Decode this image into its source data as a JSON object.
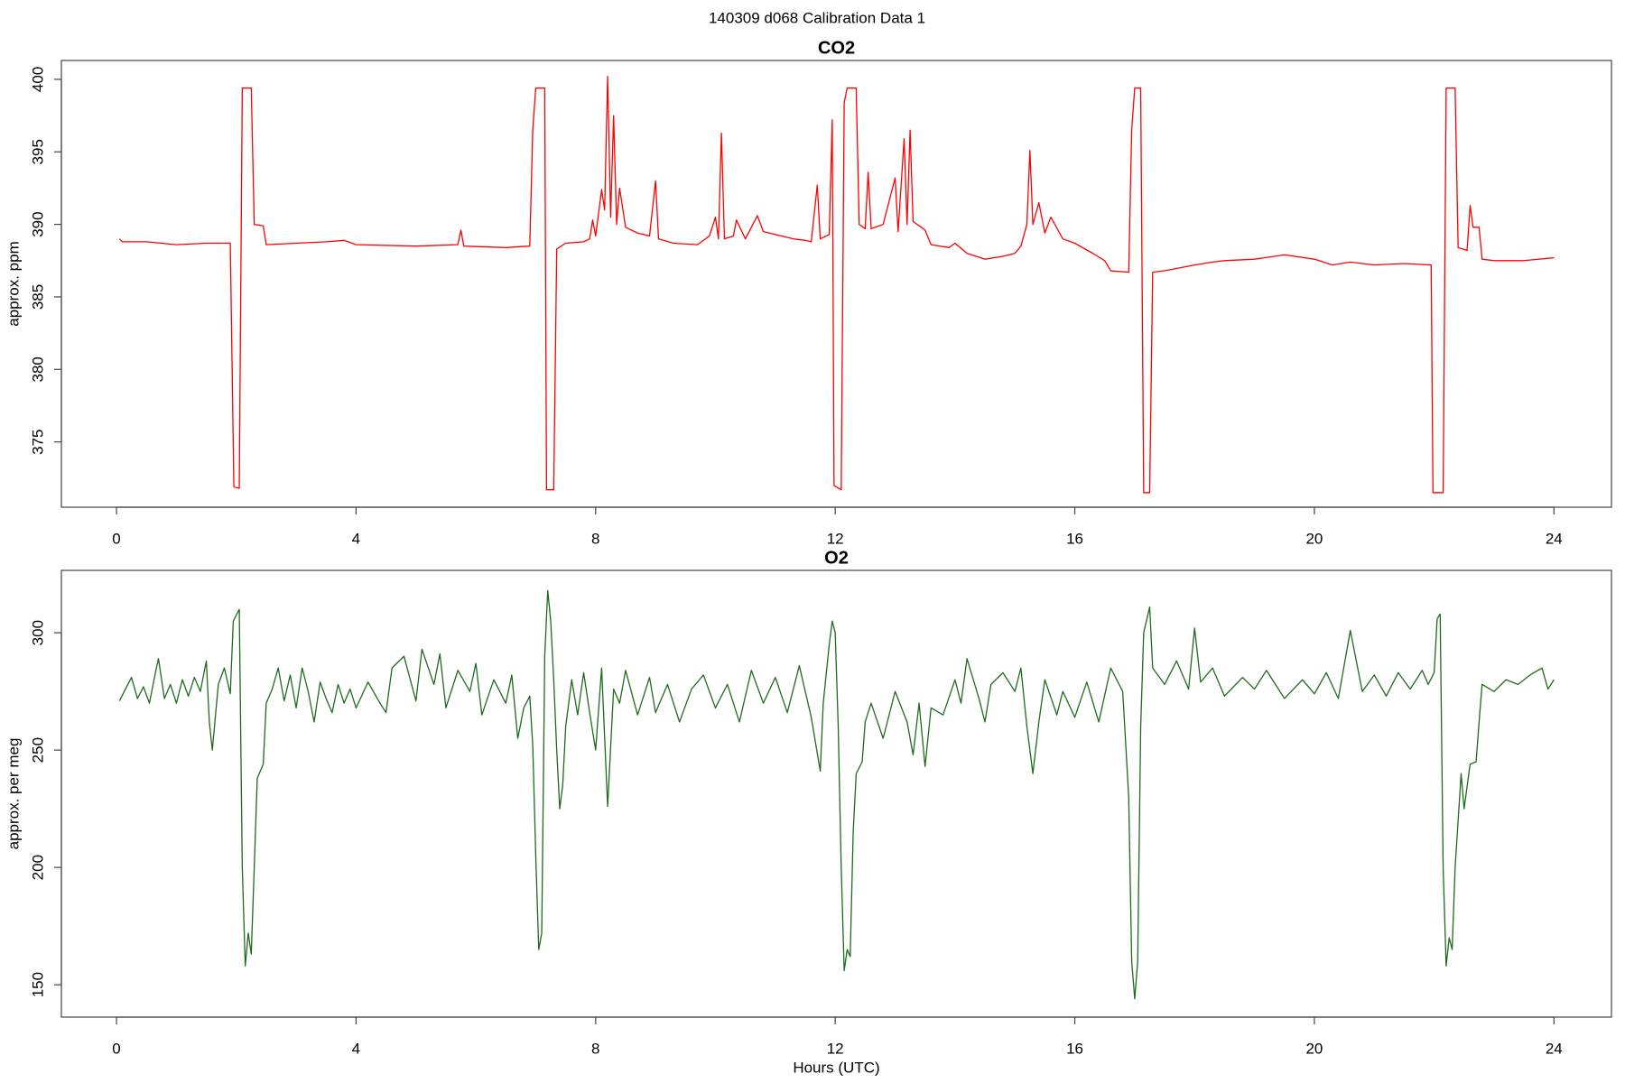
{
  "title": "140309   d068   Calibration Data 1",
  "chart_data": [
    {
      "type": "line",
      "title": "CO2",
      "ylabel": "approx. ppm",
      "color": "#ff0000",
      "grid": false,
      "xlim": [
        -0.92,
        24.96
      ],
      "xticks": [
        0,
        4,
        8,
        12,
        16,
        20,
        24
      ],
      "ylim": [
        370.5,
        401.3
      ],
      "yticks": [
        375,
        380,
        385,
        390,
        395,
        400
      ],
      "x": [
        0.05,
        0.1,
        0.5,
        1.0,
        1.5,
        1.9,
        1.96,
        2.05,
        2.1,
        2.25,
        2.3,
        2.45,
        2.5,
        3.0,
        3.5,
        3.8,
        4.0,
        5.0,
        5.7,
        5.75,
        5.8,
        6.5,
        6.9,
        6.95,
        7.0,
        7.15,
        7.18,
        7.3,
        7.35,
        7.5,
        7.8,
        7.9,
        7.95,
        8.0,
        8.1,
        8.15,
        8.2,
        8.25,
        8.3,
        8.35,
        8.4,
        8.5,
        8.7,
        8.9,
        9.0,
        9.05,
        9.3,
        9.7,
        9.9,
        10.0,
        10.05,
        10.1,
        10.15,
        10.3,
        10.35,
        10.5,
        10.7,
        10.8,
        11.0,
        11.3,
        11.5,
        11.6,
        11.7,
        11.75,
        11.9,
        11.95,
        11.98,
        12.1,
        12.15,
        12.2,
        12.35,
        12.4,
        12.5,
        12.55,
        12.6,
        12.8,
        13.0,
        13.05,
        13.15,
        13.2,
        13.25,
        13.3,
        13.5,
        13.6,
        13.9,
        14.0,
        14.2,
        14.5,
        14.8,
        15.0,
        15.1,
        15.2,
        15.25,
        15.3,
        15.4,
        15.5,
        15.6,
        15.8,
        16.0,
        16.3,
        16.5,
        16.6,
        16.9,
        16.95,
        17.0,
        17.1,
        17.15,
        17.25,
        17.3,
        17.5,
        18.0,
        18.3,
        18.5,
        19.0,
        19.5,
        20.0,
        20.3,
        20.6,
        21.0,
        21.5,
        21.95,
        21.98,
        22.15,
        22.2,
        22.35,
        22.4,
        22.55,
        22.6,
        22.65,
        22.75,
        22.8,
        23.0,
        23.5,
        24.0
      ],
      "values": [
        389.0,
        388.8,
        388.8,
        388.6,
        388.7,
        388.7,
        371.9,
        371.8,
        399.4,
        399.4,
        390.0,
        389.9,
        388.6,
        388.7,
        388.8,
        388.9,
        388.6,
        388.5,
        388.6,
        389.6,
        388.5,
        388.4,
        388.5,
        396.5,
        399.4,
        399.4,
        371.7,
        371.7,
        388.3,
        388.7,
        388.8,
        389.0,
        390.3,
        389.2,
        392.4,
        391.0,
        400.2,
        390.5,
        397.5,
        390.0,
        392.5,
        389.8,
        389.4,
        389.2,
        393.0,
        389.0,
        388.7,
        388.6,
        389.2,
        390.5,
        389.0,
        396.3,
        389.0,
        389.2,
        390.3,
        389.0,
        390.6,
        389.5,
        389.3,
        389.0,
        388.9,
        388.8,
        392.7,
        389.0,
        389.3,
        397.2,
        372.0,
        371.7,
        398.4,
        399.4,
        399.4,
        390.0,
        389.7,
        393.6,
        389.7,
        390.0,
        393.2,
        389.5,
        395.9,
        390.0,
        396.5,
        390.2,
        389.6,
        388.6,
        388.4,
        388.7,
        388.0,
        387.6,
        387.8,
        388.0,
        388.5,
        390.0,
        395.1,
        390.0,
        391.5,
        389.4,
        390.5,
        389.0,
        388.7,
        388.0,
        387.5,
        386.8,
        386.7,
        396.5,
        399.4,
        399.4,
        371.5,
        371.5,
        386.7,
        386.8,
        387.2,
        387.4,
        387.5,
        387.6,
        387.9,
        387.6,
        387.2,
        387.4,
        387.2,
        387.3,
        387.2,
        371.5,
        371.5,
        399.4,
        399.4,
        388.4,
        388.2,
        391.3,
        389.8,
        389.8,
        387.6,
        387.5,
        387.5,
        387.7
      ]
    },
    {
      "type": "line",
      "title": "O2",
      "ylabel": "approx. per meg",
      "xlabel": "Hours (UTC)",
      "color": "#1e6b1e",
      "grid": false,
      "xlim": [
        -0.92,
        24.96
      ],
      "xticks": [
        0,
        4,
        8,
        12,
        16,
        20,
        24
      ],
      "ylim": [
        136.2,
        326.6
      ],
      "yticks": [
        150,
        200,
        250,
        300
      ],
      "x": [
        0.05,
        0.15,
        0.25,
        0.35,
        0.45,
        0.55,
        0.65,
        0.7,
        0.8,
        0.9,
        1.0,
        1.1,
        1.2,
        1.3,
        1.4,
        1.5,
        1.55,
        1.6,
        1.7,
        1.8,
        1.9,
        1.95,
        2.05,
        2.1,
        2.15,
        2.2,
        2.25,
        2.3,
        2.35,
        2.45,
        2.5,
        2.6,
        2.7,
        2.8,
        2.9,
        3.0,
        3.1,
        3.2,
        3.3,
        3.4,
        3.5,
        3.6,
        3.7,
        3.8,
        3.9,
        4.0,
        4.2,
        4.4,
        4.5,
        4.6,
        4.8,
        5.0,
        5.1,
        5.3,
        5.4,
        5.5,
        5.7,
        5.9,
        6.0,
        6.1,
        6.3,
        6.5,
        6.6,
        6.7,
        6.8,
        6.9,
        6.95,
        7.0,
        7.05,
        7.1,
        7.15,
        7.2,
        7.25,
        7.3,
        7.35,
        7.4,
        7.45,
        7.5,
        7.6,
        7.7,
        7.8,
        7.9,
        8.0,
        8.1,
        8.2,
        8.3,
        8.4,
        8.5,
        8.7,
        8.9,
        9.0,
        9.2,
        9.4,
        9.6,
        9.8,
        10.0,
        10.2,
        10.4,
        10.6,
        10.8,
        11.0,
        11.2,
        11.4,
        11.6,
        11.75,
        11.8,
        11.9,
        11.95,
        12.0,
        12.05,
        12.1,
        12.15,
        12.2,
        12.25,
        12.3,
        12.35,
        12.45,
        12.5,
        12.6,
        12.8,
        13.0,
        13.2,
        13.3,
        13.4,
        13.5,
        13.6,
        13.8,
        14.0,
        14.1,
        14.2,
        14.4,
        14.5,
        14.6,
        14.8,
        15.0,
        15.1,
        15.2,
        15.3,
        15.4,
        15.5,
        15.7,
        15.8,
        16.0,
        16.2,
        16.4,
        16.6,
        16.8,
        16.9,
        16.95,
        17.0,
        17.05,
        17.1,
        17.15,
        17.25,
        17.3,
        17.5,
        17.7,
        17.9,
        18.0,
        18.1,
        18.3,
        18.5,
        18.8,
        19.0,
        19.2,
        19.5,
        19.8,
        20.0,
        20.2,
        20.4,
        20.6,
        20.8,
        21.0,
        21.2,
        21.4,
        21.6,
        21.8,
        21.9,
        22.0,
        22.05,
        22.1,
        22.15,
        22.2,
        22.25,
        22.3,
        22.35,
        22.45,
        22.5,
        22.6,
        22.7,
        22.75,
        22.8,
        23.0,
        23.2,
        23.4,
        23.6,
        23.8,
        23.9,
        24.0
      ],
      "values": [
        271,
        276,
        281,
        272,
        277,
        270,
        283,
        289,
        272,
        278,
        270,
        280,
        273,
        281,
        275,
        288,
        262,
        250,
        278,
        285,
        274,
        305,
        310,
        200,
        158,
        172,
        163,
        200,
        238,
        244,
        270,
        276,
        285,
        271,
        282,
        268,
        285,
        275,
        262,
        279,
        272,
        266,
        278,
        270,
        276,
        268,
        279,
        270,
        266,
        285,
        290,
        271,
        293,
        278,
        291,
        268,
        284,
        275,
        287,
        265,
        280,
        270,
        282,
        255,
        268,
        273,
        252,
        205,
        165,
        172,
        290,
        318,
        305,
        280,
        250,
        225,
        235,
        260,
        280,
        265,
        283,
        266,
        250,
        285,
        226,
        276,
        270,
        284,
        265,
        281,
        266,
        278,
        262,
        276,
        282,
        268,
        278,
        262,
        284,
        270,
        281,
        266,
        286,
        264,
        241,
        270,
        295,
        305,
        300,
        260,
        200,
        156,
        165,
        162,
        215,
        240,
        245,
        262,
        270,
        255,
        275,
        262,
        248,
        270,
        243,
        268,
        265,
        280,
        270,
        289,
        272,
        262,
        278,
        283,
        275,
        285,
        260,
        240,
        262,
        280,
        265,
        275,
        264,
        279,
        262,
        285,
        275,
        230,
        160,
        144,
        160,
        260,
        300,
        311,
        285,
        278,
        288,
        276,
        302,
        279,
        285,
        273,
        281,
        276,
        284,
        272,
        280,
        274,
        283,
        272,
        301,
        275,
        282,
        273,
        283,
        276,
        284,
        278,
        283,
        306,
        308,
        200,
        158,
        170,
        165,
        200,
        240,
        225,
        244,
        245,
        262,
        278,
        275,
        280,
        278,
        282,
        285,
        276,
        280
      ]
    }
  ]
}
